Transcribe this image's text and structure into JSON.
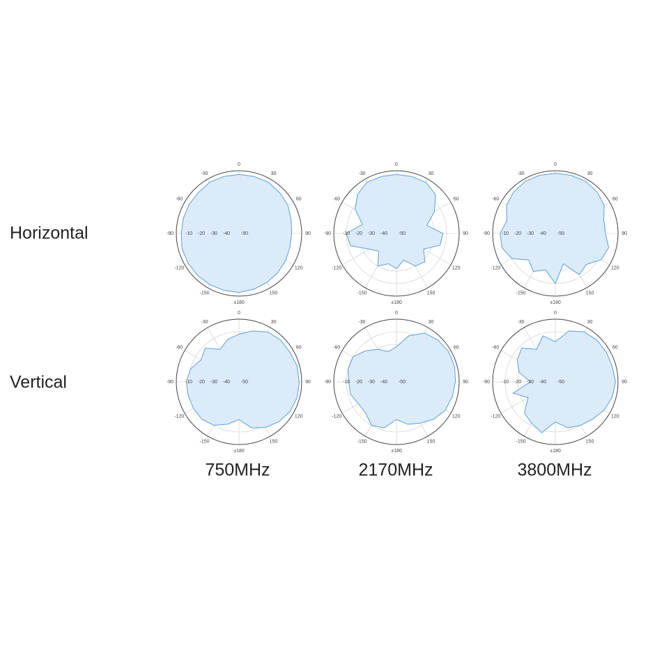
{
  "row_labels": [
    "Horizontal",
    "Vertical"
  ],
  "column_labels": [
    "750MHz",
    "2170MHz",
    "3800MHz"
  ],
  "chart_data": [
    {
      "type": "polar",
      "color": "#5aa0dc",
      "fill": "#dcebfa",
      "rlim": [
        -50,
        0
      ],
      "rticks": [
        -10,
        -20,
        -30,
        -40,
        -50
      ],
      "angle_ticks": [
        0,
        30,
        60,
        90,
        120,
        150,
        {
          "value": 180,
          "label": "±180"
        },
        -150,
        -120,
        -90,
        -60,
        -30
      ],
      "angles": [
        0,
        15,
        30,
        45,
        60,
        75,
        90,
        105,
        120,
        135,
        150,
        165,
        180,
        195,
        210,
        225,
        240,
        255,
        270,
        285,
        300,
        315,
        330,
        345
      ],
      "values": [
        -3,
        -3,
        -3,
        -4,
        -5,
        -7,
        -8,
        -8,
        -7,
        -6,
        -5,
        -4,
        -3,
        -3,
        -3,
        -3,
        -3,
        -3,
        -4,
        -4,
        -4,
        -4,
        -3,
        -3
      ]
    },
    {
      "type": "polar",
      "color": "#5aa0dc",
      "fill": "#dcebfa",
      "rlim": [
        -50,
        0
      ],
      "rticks": [
        -10,
        -20,
        -30,
        -40,
        -50
      ],
      "angle_ticks": [
        0,
        30,
        60,
        90,
        120,
        150,
        {
          "value": 180,
          "label": "±180"
        },
        -150,
        -120,
        -90,
        -60,
        -30
      ],
      "angles": [
        0,
        15,
        30,
        45,
        60,
        75,
        90,
        105,
        120,
        135,
        150,
        165,
        180,
        195,
        210,
        225,
        240,
        255,
        270,
        285,
        300,
        315,
        330,
        345
      ],
      "values": [
        -3,
        -3,
        -3,
        -6,
        -15,
        -25,
        -13,
        -14,
        -25,
        -18,
        -20,
        -28,
        -22,
        -25,
        -20,
        -30,
        -25,
        -12,
        -10,
        -22,
        -12,
        -6,
        -3,
        -3
      ]
    },
    {
      "type": "polar",
      "color": "#5aa0dc",
      "fill": "#dcebfa",
      "rlim": [
        -50,
        0
      ],
      "rticks": [
        -10,
        -20,
        -30,
        -40,
        -50
      ],
      "angle_ticks": [
        0,
        30,
        60,
        90,
        120,
        150,
        {
          "value": 180,
          "label": "±180"
        },
        -150,
        -120,
        -90,
        -60,
        -30
      ],
      "angles": [
        0,
        15,
        30,
        45,
        60,
        75,
        90,
        105,
        120,
        135,
        150,
        165,
        180,
        195,
        210,
        225,
        240,
        255,
        270,
        285,
        300,
        315,
        330,
        345
      ],
      "values": [
        -2,
        -2,
        -2,
        -3,
        -5,
        -10,
        -10,
        -6,
        -8,
        -15,
        -12,
        -25,
        -10,
        -20,
        -15,
        -20,
        -10,
        -6,
        -6,
        -10,
        -5,
        -3,
        -2,
        -2
      ]
    },
    {
      "type": "polar",
      "color": "#5aa0dc",
      "fill": "#dcebfa",
      "rlim": [
        -50,
        0
      ],
      "rticks": [
        -10,
        -20,
        -30,
        -40,
        -50
      ],
      "angle_ticks": [
        0,
        30,
        60,
        90,
        120,
        150,
        {
          "value": 180,
          "label": "±180"
        },
        -150,
        -120,
        -90,
        -60,
        -30
      ],
      "angles": [
        0,
        15,
        30,
        45,
        60,
        75,
        90,
        105,
        120,
        135,
        150,
        165,
        180,
        195,
        210,
        225,
        240,
        255,
        270,
        285,
        300,
        315,
        330,
        345
      ],
      "values": [
        -12,
        -8,
        -4,
        -3,
        -3,
        -2,
        -2,
        -2,
        -3,
        -5,
        -8,
        -12,
        -20,
        -15,
        -10,
        -8,
        -8,
        -8,
        -8,
        -10,
        -15,
        -12,
        -20,
        -15
      ]
    },
    {
      "type": "polar",
      "color": "#5aa0dc",
      "fill": "#dcebfa",
      "rlim": [
        -50,
        0
      ],
      "rticks": [
        -10,
        -20,
        -30,
        -40,
        -50
      ],
      "angle_ticks": [
        0,
        30,
        60,
        90,
        120,
        150,
        {
          "value": 180,
          "label": "±180"
        },
        -150,
        -120,
        -90,
        -60,
        -30
      ],
      "angles": [
        0,
        15,
        30,
        45,
        60,
        75,
        90,
        105,
        120,
        135,
        150,
        165,
        180,
        195,
        210,
        225,
        240,
        255,
        270,
        285,
        300,
        315,
        330,
        345
      ],
      "values": [
        -22,
        -12,
        -5,
        -3,
        -2,
        -2,
        -3,
        -4,
        -5,
        -8,
        -12,
        -15,
        -20,
        -12,
        -10,
        -15,
        -15,
        -12,
        -12,
        -10,
        -10,
        -15,
        -20,
        -25
      ]
    },
    {
      "type": "polar",
      "color": "#5aa0dc",
      "fill": "#dcebfa",
      "rlim": [
        -50,
        0
      ],
      "rticks": [
        -10,
        -20,
        -30,
        -40,
        -50
      ],
      "angle_ticks": [
        0,
        30,
        60,
        90,
        120,
        150,
        {
          "value": 180,
          "label": "±180"
        },
        -150,
        -120,
        -90,
        -60,
        -30
      ],
      "angles": [
        0,
        15,
        30,
        45,
        60,
        75,
        90,
        105,
        120,
        135,
        150,
        165,
        180,
        195,
        210,
        225,
        240,
        255,
        270,
        285,
        300,
        315,
        330,
        345
      ],
      "values": [
        -18,
        -8,
        -4,
        -3,
        -3,
        -3,
        -2,
        -3,
        -5,
        -8,
        -10,
        -12,
        -18,
        -8,
        -12,
        -15,
        -25,
        -15,
        -30,
        -20,
        -15,
        -12,
        -20,
        -12
      ]
    }
  ]
}
